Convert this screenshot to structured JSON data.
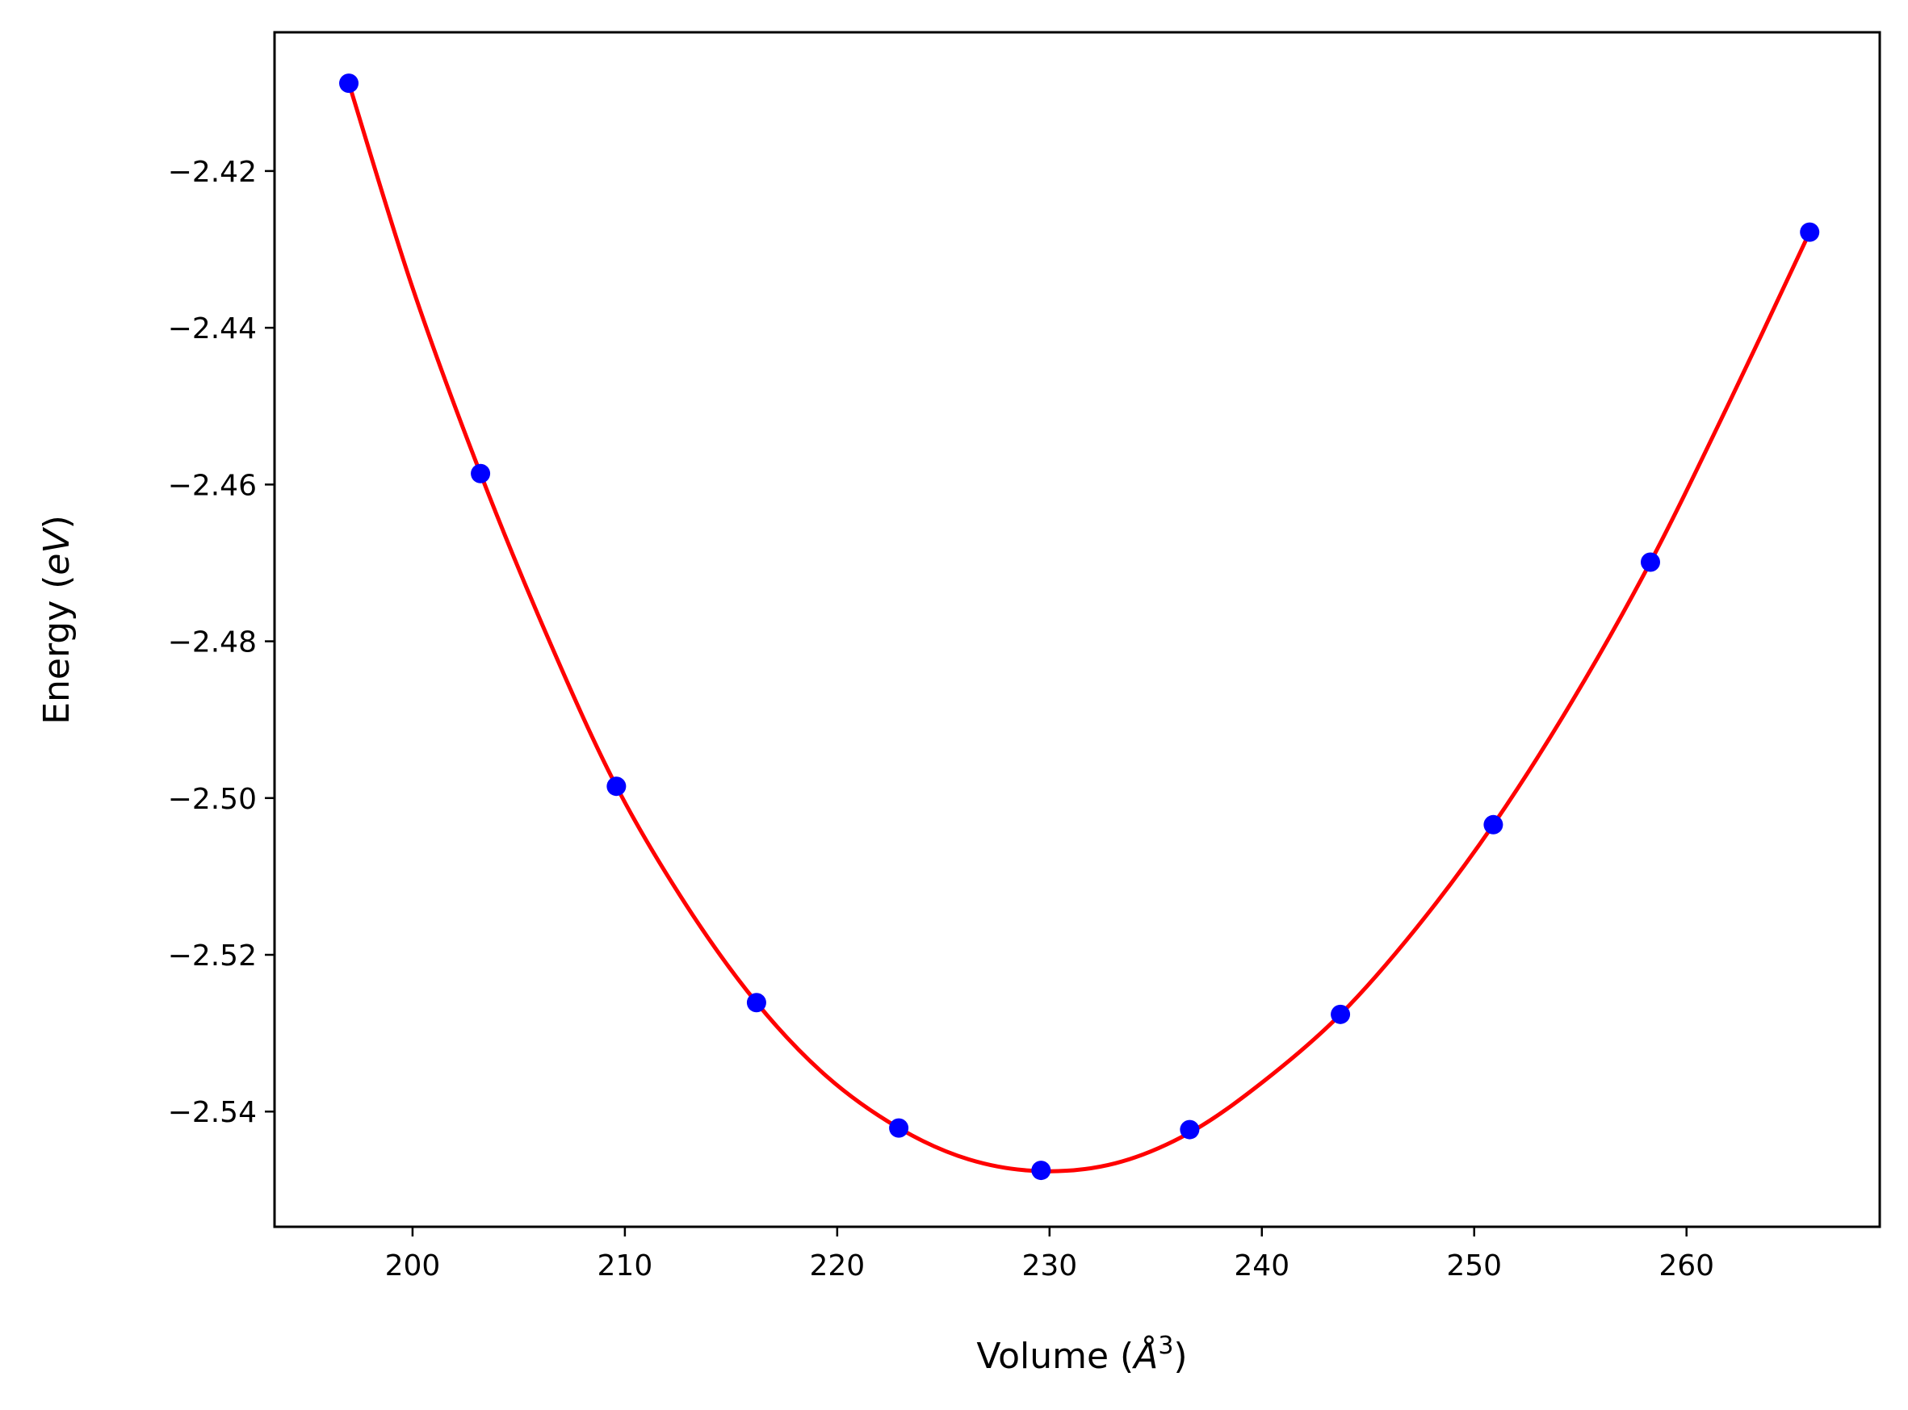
{
  "chart_data": {
    "type": "scatter",
    "title": "",
    "xlabel": "Volume (Å³)",
    "xlabel_prefix": "Volume (",
    "xlabel_unit": "Å",
    "xlabel_exp": "3",
    "xlabel_suffix": ")",
    "ylabel": "Energy (eV)",
    "ylabel_prefix": "Energy (",
    "ylabel_unit": "eV",
    "ylabel_suffix": ")",
    "xlim": [
      193.5,
      269.1
    ],
    "ylim": [
      -2.5547,
      -2.4023
    ],
    "xticks": [
      200,
      210,
      220,
      230,
      240,
      250,
      260
    ],
    "xtick_labels": [
      "200",
      "210",
      "220",
      "230",
      "240",
      "250",
      "260"
    ],
    "yticks": [
      -2.42,
      -2.44,
      -2.46,
      -2.48,
      -2.5,
      -2.52,
      -2.54
    ],
    "ytick_labels": [
      "−2.42",
      "−2.44",
      "−2.46",
      "−2.48",
      "−2.50",
      "−2.52",
      "−2.54"
    ],
    "grid": false,
    "legend": "none",
    "series": [
      {
        "kind": "points",
        "color": "#0000ff",
        "x": [
          197.0,
          203.2,
          209.6,
          216.2,
          222.9,
          229.6,
          236.6,
          243.7,
          250.9,
          258.3,
          265.8
        ],
        "y": [
          -2.4088,
          -2.4586,
          -2.4985,
          -2.5261,
          -2.5421,
          -2.5475,
          -2.5423,
          -2.5276,
          -2.5034,
          -2.4699,
          -2.4278
        ]
      },
      {
        "kind": "fit-curve",
        "color": "#ff0000",
        "x": [
          197.0,
          200.0,
          203.2,
          206.4,
          209.6,
          212.9,
          216.2,
          219.5,
          222.9,
          226.2,
          229.6,
          233.1,
          236.6,
          240.1,
          243.7,
          247.3,
          250.9,
          254.6,
          258.3,
          262.0,
          265.8
        ],
        "y": [
          -2.4088,
          -2.4349,
          -2.4586,
          -2.4797,
          -2.4985,
          -2.5137,
          -2.5261,
          -2.5355,
          -2.5421,
          -2.5461,
          -2.5476,
          -2.5466,
          -2.5427,
          -2.5361,
          -2.5276,
          -2.5165,
          -2.5034,
          -2.4877,
          -2.4699,
          -2.4496,
          -2.4278
        ]
      }
    ]
  }
}
